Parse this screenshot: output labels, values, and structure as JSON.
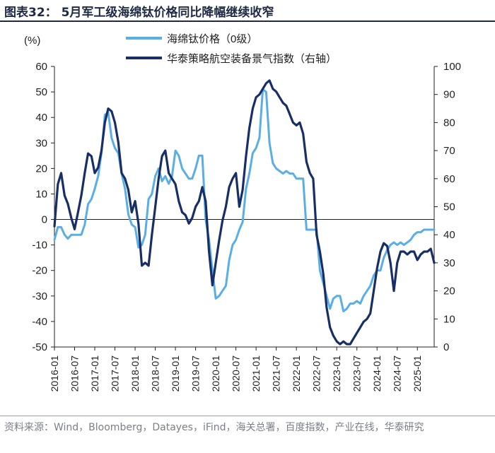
{
  "page": {
    "title": "图表32：  5月军工级海绵钛价格同比降幅继续收窄",
    "source": "资料来源：Wind，Bloomberg，Datayes，iFind，海关总署，百度指数，产业在线，华泰研究"
  },
  "chart_data": {
    "type": "line",
    "left_axis_label": "(%)",
    "ylim_left": [
      -50,
      60
    ],
    "yticks_left": [
      60,
      50,
      40,
      30,
      20,
      10,
      0,
      -10,
      -20,
      -30,
      -40,
      -50
    ],
    "ylim_right": [
      0,
      100
    ],
    "yticks_right": [
      100,
      90,
      80,
      70,
      60,
      50,
      40,
      30,
      20,
      10,
      0
    ],
    "x_range": [
      0,
      113
    ],
    "xticks": [
      "2016-01",
      "2016-07",
      "2017-01",
      "2017-07",
      "2018-01",
      "2018-07",
      "2019-01",
      "2019-07",
      "2020-01",
      "2020-07",
      "2021-01",
      "2021-07",
      "2022-01",
      "2022-07",
      "2023-01",
      "2023-07",
      "2024-01",
      "2024-07",
      "2025-01"
    ],
    "legend": [
      "海绵钛价格（0级）",
      "华泰策略航空装备景气指数（右轴）"
    ],
    "colors": {
      "series_left": "#5aaee6",
      "series_right": "#172e66"
    },
    "series": [
      {
        "name": "海绵钛价格（0级）",
        "axis": "left",
        "x": [
          0,
          1,
          2,
          3,
          4,
          5,
          6,
          7,
          8,
          9,
          10,
          11,
          12,
          13,
          14,
          15,
          16,
          17,
          18,
          19,
          20,
          21,
          22,
          23,
          24,
          25,
          26,
          27,
          28,
          29,
          30,
          31,
          32,
          33,
          34,
          35,
          36,
          37,
          38,
          39,
          40,
          41,
          42,
          43,
          44,
          45,
          46,
          47,
          48,
          49,
          50,
          51,
          52,
          53,
          54,
          55,
          56,
          57,
          58,
          59,
          60,
          61,
          62,
          63,
          64,
          65,
          66,
          67,
          68,
          69,
          70,
          71,
          72,
          73,
          74,
          75,
          76,
          77,
          78,
          79,
          80,
          81,
          82,
          83,
          84,
          85,
          86,
          87,
          88,
          89,
          90,
          91,
          92,
          93,
          94,
          95,
          96,
          97,
          98,
          99,
          100,
          101,
          102,
          103,
          104,
          105,
          106,
          107,
          108,
          109,
          110,
          111,
          112,
          113
        ],
        "values": [
          -8,
          -3,
          -3,
          -6,
          -7.5,
          -6,
          -6,
          -6,
          -6,
          -2,
          6,
          8,
          12,
          17,
          26,
          41,
          42,
          32,
          28,
          26,
          18,
          12,
          2,
          -2,
          -3,
          -11,
          -10,
          -6,
          8,
          10,
          17,
          20,
          15,
          17,
          14,
          17,
          27,
          25,
          20,
          18,
          16,
          16,
          20,
          25,
          25,
          0,
          -8,
          -20,
          -31,
          -30,
          -28,
          -26,
          -16,
          -10,
          -8,
          -4,
          -1,
          12,
          18,
          26,
          28,
          32,
          51,
          50,
          30,
          22,
          20,
          19,
          18,
          19,
          18,
          18,
          16,
          16,
          16,
          -4,
          -4,
          -4,
          -4,
          -20,
          -25,
          -30,
          -35,
          -31,
          -30,
          -30,
          -36,
          -35,
          -33,
          -33,
          -32,
          -33,
          -30,
          -28,
          -26,
          -22,
          -20,
          -20,
          -15,
          -12,
          -10,
          -9,
          -10,
          -9,
          -10,
          -9,
          -8,
          -6,
          -5,
          -5,
          -4,
          -4,
          -4,
          -4
        ]
      },
      {
        "name": "华泰策略航空装备景气指数（右轴）",
        "axis": "right",
        "x": [
          0,
          1,
          2,
          3,
          4,
          5,
          6,
          7,
          8,
          9,
          10,
          11,
          12,
          13,
          14,
          15,
          16,
          17,
          18,
          19,
          20,
          21,
          22,
          23,
          24,
          25,
          26,
          27,
          28,
          29,
          30,
          31,
          32,
          33,
          34,
          35,
          36,
          37,
          38,
          39,
          40,
          41,
          42,
          43,
          44,
          45,
          46,
          47,
          48,
          49,
          50,
          51,
          52,
          53,
          54,
          55,
          56,
          57,
          58,
          59,
          60,
          61,
          62,
          63,
          64,
          65,
          66,
          67,
          68,
          69,
          70,
          71,
          72,
          73,
          74,
          75,
          76,
          77,
          78,
          79,
          80,
          81,
          82,
          83,
          84,
          85,
          86,
          87,
          88,
          89,
          90,
          91,
          92,
          93,
          94,
          95,
          96,
          97,
          98,
          99,
          100,
          101,
          102,
          103,
          104,
          105,
          106,
          107,
          108,
          109,
          110,
          111,
          112,
          113
        ],
        "values": [
          43,
          58,
          62,
          54,
          51,
          46,
          42,
          48,
          54,
          62,
          69,
          68,
          62,
          64,
          70,
          80,
          85,
          84,
          80,
          73,
          62,
          60,
          56,
          48,
          52,
          44,
          29,
          30,
          29,
          40,
          50,
          60,
          68,
          70,
          62,
          60,
          58,
          52,
          48,
          47,
          44,
          46,
          50,
          52,
          57,
          52,
          34,
          22,
          30,
          38,
          45,
          50,
          57,
          60,
          62,
          50,
          56,
          68,
          78,
          85,
          89,
          90,
          92,
          94,
          95,
          92,
          91,
          89,
          87,
          86,
          83,
          80,
          79,
          80,
          76,
          66,
          62,
          60,
          40,
          34,
          26,
          14,
          7,
          4,
          2,
          1,
          2,
          1,
          1,
          3,
          5,
          7,
          9,
          10,
          12,
          20,
          28,
          34,
          37,
          36,
          30,
          20,
          30,
          34,
          34,
          33,
          34,
          34,
          31,
          33,
          34,
          34,
          35,
          30
        ]
      }
    ]
  }
}
